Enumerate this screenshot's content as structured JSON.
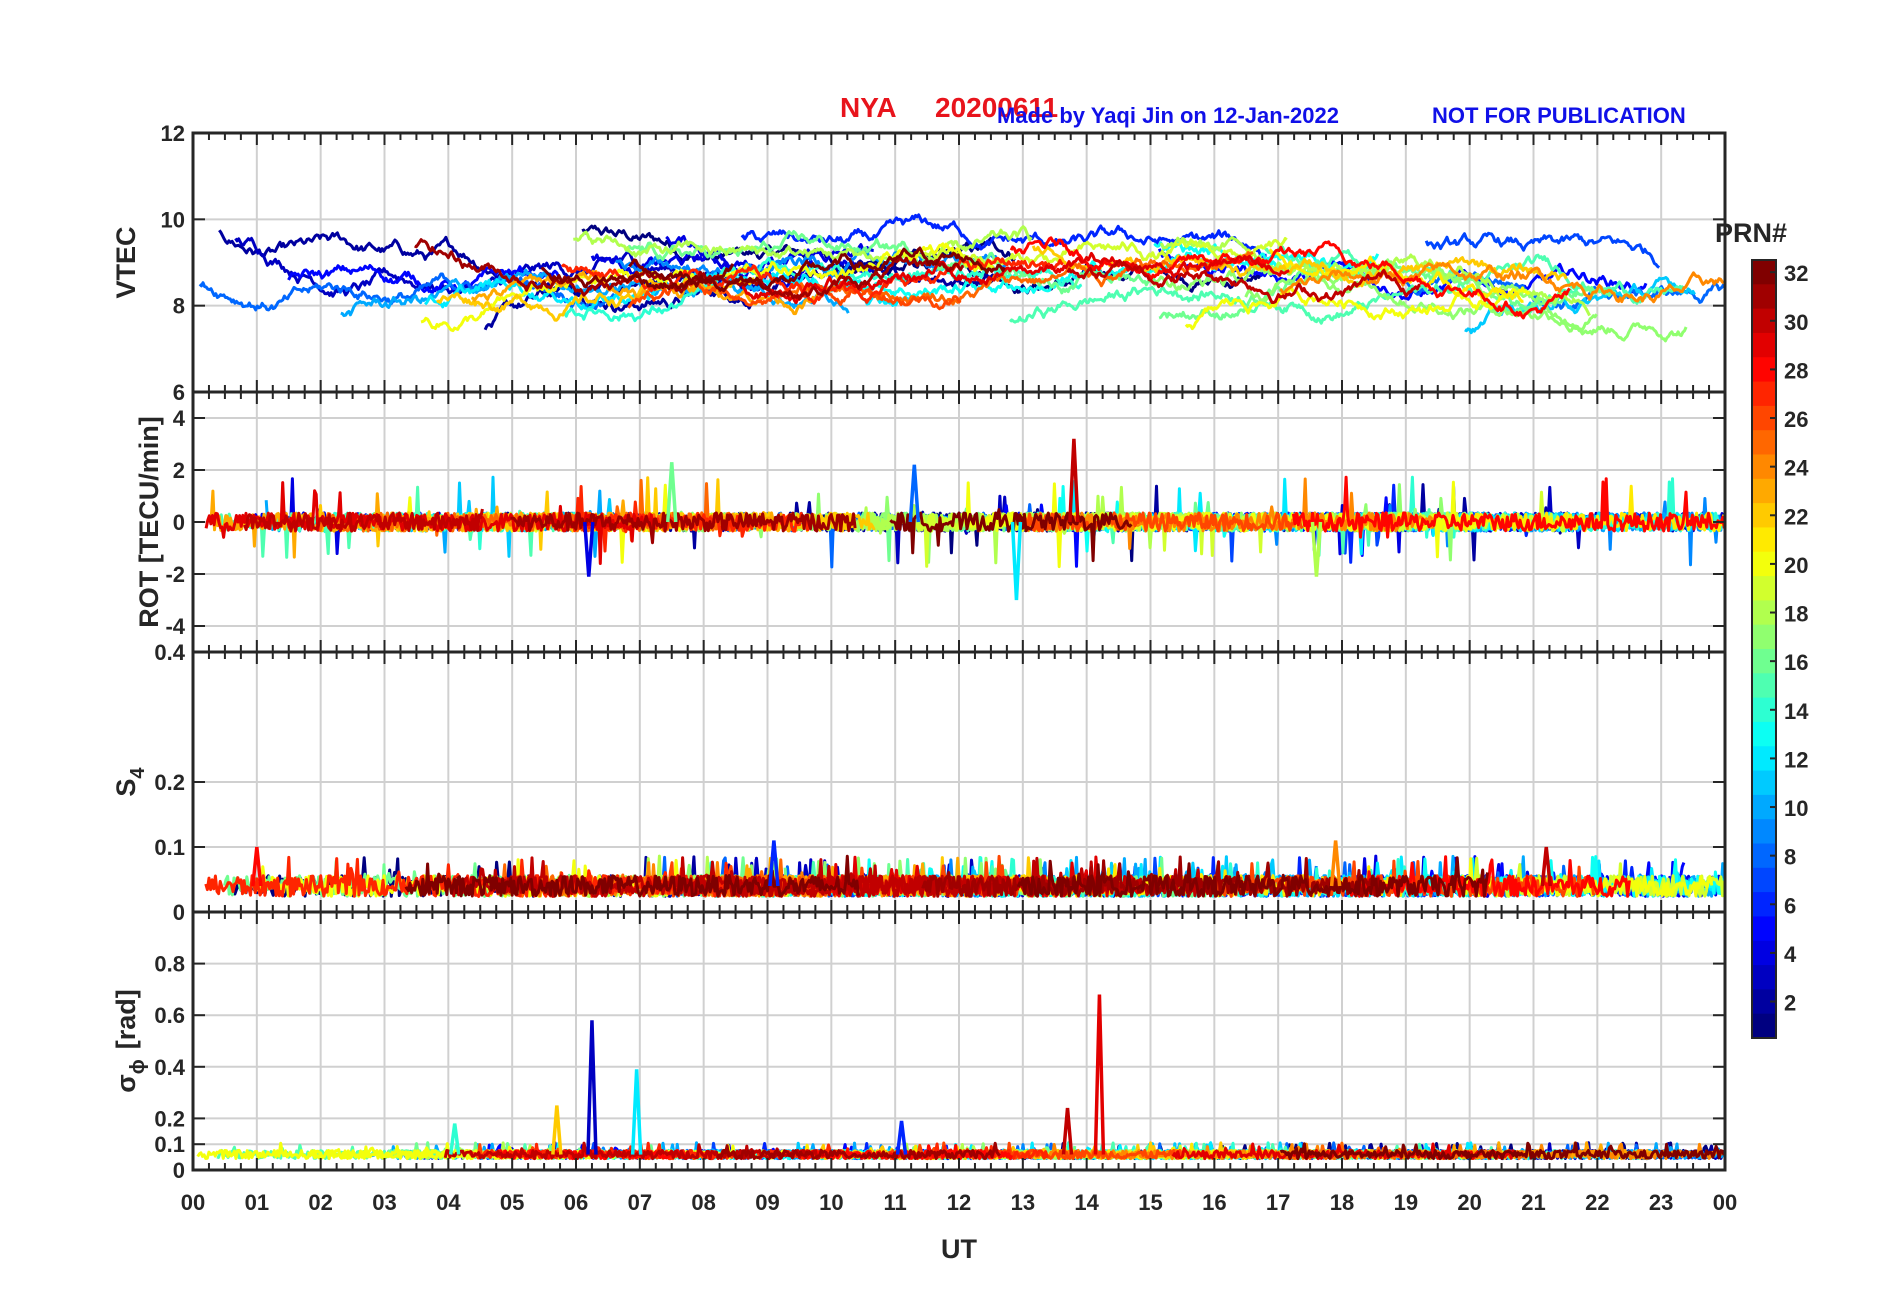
{
  "header": {
    "station": "NYA",
    "date": "20200611",
    "credit": "Made by Yaqi Jin on 12-Jan-2022",
    "notice": "NOT FOR PUBLICATION"
  },
  "colors": {
    "title": "#e8141c",
    "credit": "#1010e8",
    "axis": "#262626",
    "grid": "#d0d0d0"
  },
  "chart_data": {
    "type": "line",
    "colormap": "jet",
    "xlabel": "UT",
    "xlim": [
      0,
      24
    ],
    "x_ticks": [
      "00",
      "01",
      "02",
      "03",
      "04",
      "05",
      "06",
      "07",
      "08",
      "09",
      "10",
      "11",
      "12",
      "13",
      "14",
      "15",
      "16",
      "17",
      "18",
      "19",
      "20",
      "21",
      "22",
      "23",
      "00"
    ],
    "panels": [
      {
        "id": "vtec",
        "ylabel": "VTEC",
        "ylim": [
          6,
          12
        ],
        "y_ticks": [
          6,
          8,
          10,
          12
        ],
        "baseline": 8.6,
        "spread": 1.6,
        "spikes": []
      },
      {
        "id": "rot",
        "ylabel": "ROT [TECU/min]",
        "ylim": [
          -5,
          5
        ],
        "y_ticks": [
          -4,
          -2,
          0,
          2,
          4
        ],
        "baseline": 0,
        "spread": 0.35,
        "spikes": [
          {
            "x": 6.2,
            "y": -2.1,
            "prn": 4
          },
          {
            "x": 7.5,
            "y": 2.3,
            "prn": 16
          },
          {
            "x": 12.9,
            "y": -3.0,
            "prn": 12
          },
          {
            "x": 13.8,
            "y": 3.2,
            "prn": 30
          },
          {
            "x": 17.6,
            "y": -2.1,
            "prn": 18
          },
          {
            "x": 11.3,
            "y": 2.2,
            "prn": 8
          }
        ]
      },
      {
        "id": "s4",
        "ylabel": "S",
        "ylabel_sub": "4",
        "ylim": [
          0,
          0.4
        ],
        "y_ticks": [
          0,
          0.1,
          0.2,
          0.4
        ],
        "baseline": 0.04,
        "spread": 0.02,
        "spikes": [
          {
            "x": 1.0,
            "y": 0.1,
            "prn": 28
          },
          {
            "x": 9.1,
            "y": 0.11,
            "prn": 6
          },
          {
            "x": 17.9,
            "y": 0.11,
            "prn": 24
          },
          {
            "x": 21.2,
            "y": 0.1,
            "prn": 30
          }
        ]
      },
      {
        "id": "sigphi",
        "ylabel": "σ",
        "ylabel_sub": "ϕ",
        "ylabel_unit": "[rad]",
        "ylim": [
          0,
          1
        ],
        "y_ticks": [
          0,
          0.1,
          0.2,
          0.4,
          0.6,
          0.8
        ],
        "baseline": 0.06,
        "spread": 0.02,
        "spikes": [
          {
            "x": 6.25,
            "y": 0.58,
            "prn": 3
          },
          {
            "x": 6.95,
            "y": 0.39,
            "prn": 12
          },
          {
            "x": 5.7,
            "y": 0.25,
            "prn": 22
          },
          {
            "x": 13.7,
            "y": 0.24,
            "prn": 30
          },
          {
            "x": 14.2,
            "y": 0.68,
            "prn": 29
          },
          {
            "x": 11.1,
            "y": 0.19,
            "prn": 6
          },
          {
            "x": 4.1,
            "y": 0.18,
            "prn": 14
          }
        ]
      }
    ],
    "colorbar": {
      "label": "PRN#",
      "range": [
        1,
        32
      ],
      "ticks": [
        2,
        4,
        6,
        8,
        10,
        12,
        14,
        16,
        18,
        20,
        22,
        24,
        26,
        28,
        30,
        32
      ]
    },
    "series": [
      {
        "prn": 1
      },
      {
        "prn": 2
      },
      {
        "prn": 3
      },
      {
        "prn": 4
      },
      {
        "prn": 5
      },
      {
        "prn": 6
      },
      {
        "prn": 7
      },
      {
        "prn": 8
      },
      {
        "prn": 9
      },
      {
        "prn": 10
      },
      {
        "prn": 11
      },
      {
        "prn": 12
      },
      {
        "prn": 13
      },
      {
        "prn": 14
      },
      {
        "prn": 15
      },
      {
        "prn": 16
      },
      {
        "prn": 17
      },
      {
        "prn": 18
      },
      {
        "prn": 19
      },
      {
        "prn": 20
      },
      {
        "prn": 21
      },
      {
        "prn": 22
      },
      {
        "prn": 23
      },
      {
        "prn": 24
      },
      {
        "prn": 25
      },
      {
        "prn": 26
      },
      {
        "prn": 27
      },
      {
        "prn": 28
      },
      {
        "prn": 29
      },
      {
        "prn": 30
      },
      {
        "prn": 31
      },
      {
        "prn": 32
      }
    ]
  }
}
